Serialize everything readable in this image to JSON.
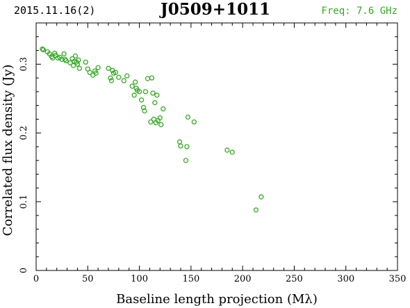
{
  "header": {
    "date": "2015.11.16(2)",
    "source": "J0509+1011",
    "frequency": "Freq: 7.6 GHz"
  },
  "colors": {
    "points": "#33aa22",
    "frequency_text": "#33aa22",
    "axes": "#000000"
  },
  "chart_data": {
    "type": "scatter",
    "title": "J0509+1011",
    "xlabel": "Baseline length projection (Mλ)",
    "ylabel": "Correlated flux density (Jy)",
    "xlim": [
      0,
      350
    ],
    "ylim": [
      0,
      0.36
    ],
    "x_ticks": [
      0,
      50,
      100,
      150,
      200,
      250,
      300,
      350
    ],
    "y_ticks": [
      0,
      0.1,
      0.2,
      0.3
    ],
    "x_tick_labels": [
      "0",
      "50",
      "100",
      "150",
      "200",
      "250",
      "300",
      "350"
    ],
    "y_tick_labels": [
      "0",
      "0.1",
      "0.2",
      "0.3"
    ],
    "grid": false,
    "marker": "open-circle",
    "points": [
      [
        6,
        0.322
      ],
      [
        7,
        0.321
      ],
      [
        11,
        0.318
      ],
      [
        13,
        0.315
      ],
      [
        15,
        0.311
      ],
      [
        16,
        0.309
      ],
      [
        18,
        0.316
      ],
      [
        19,
        0.313
      ],
      [
        21,
        0.309
      ],
      [
        23,
        0.31
      ],
      [
        25,
        0.307
      ],
      [
        27,
        0.315
      ],
      [
        28,
        0.307
      ],
      [
        29,
        0.305
      ],
      [
        33,
        0.302
      ],
      [
        35,
        0.308
      ],
      [
        36,
        0.298
      ],
      [
        37,
        0.304
      ],
      [
        38,
        0.312
      ],
      [
        39,
        0.303
      ],
      [
        40,
        0.3
      ],
      [
        41,
        0.306
      ],
      [
        42,
        0.294
      ],
      [
        48,
        0.303
      ],
      [
        50,
        0.293
      ],
      [
        52,
        0.288
      ],
      [
        55,
        0.284
      ],
      [
        57,
        0.29
      ],
      [
        58,
        0.287
      ],
      [
        60,
        0.295
      ],
      [
        70,
        0.294
      ],
      [
        72,
        0.28
      ],
      [
        73,
        0.276
      ],
      [
        74,
        0.291
      ],
      [
        75,
        0.287
      ],
      [
        77,
        0.288
      ],
      [
        80,
        0.281
      ],
      [
        85,
        0.276
      ],
      [
        88,
        0.283
      ],
      [
        93,
        0.268
      ],
      [
        95,
        0.255
      ],
      [
        96,
        0.274
      ],
      [
        97,
        0.265
      ],
      [
        98,
        0.262
      ],
      [
        100,
        0.26
      ],
      [
        102,
        0.248
      ],
      [
        104,
        0.237
      ],
      [
        105,
        0.232
      ],
      [
        106,
        0.26
      ],
      [
        108,
        0.279
      ],
      [
        111,
        0.216
      ],
      [
        112,
        0.28
      ],
      [
        113,
        0.258
      ],
      [
        114,
        0.22
      ],
      [
        115,
        0.244
      ],
      [
        116,
        0.215
      ],
      [
        117,
        0.255
      ],
      [
        118,
        0.218
      ],
      [
        120,
        0.222
      ],
      [
        121,
        0.212
      ],
      [
        123,
        0.235
      ],
      [
        139,
        0.187
      ],
      [
        140,
        0.181
      ],
      [
        145,
        0.16
      ],
      [
        146,
        0.18
      ],
      [
        147,
        0.223
      ],
      [
        153,
        0.216
      ],
      [
        185,
        0.175
      ],
      [
        190,
        0.172
      ],
      [
        213,
        0.088
      ],
      [
        218,
        0.107
      ]
    ]
  }
}
